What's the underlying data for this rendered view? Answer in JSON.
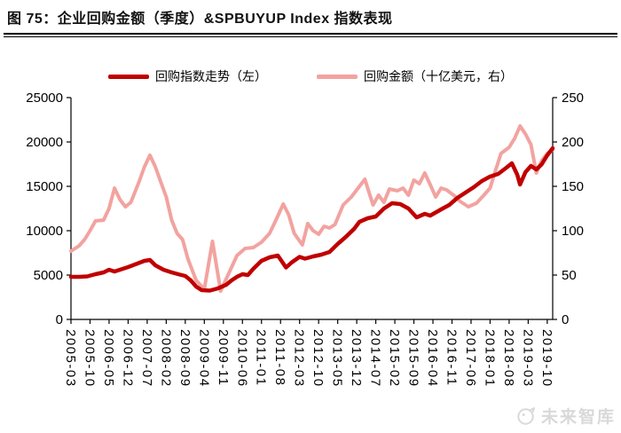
{
  "page": {
    "title": "图 75：企业回购金额（季度）&SPBUYUP Index 指数表现",
    "watermark_text": "未来智库"
  },
  "colors": {
    "index_line": "#C00000",
    "amount_line": "#F2A3A0",
    "axis": "#000000",
    "tick_label": "#000000",
    "watermark": "#D9D9D9"
  },
  "chart_data": {
    "type": "line",
    "title": "企业回购金额（季度）&SPBUYUP Index 指数表现",
    "grid": false,
    "legend_position": "top-center",
    "left_ylim": [
      0,
      25000
    ],
    "right_ylim": [
      0,
      250
    ],
    "left_axis_ticks": [
      0,
      5000,
      10000,
      15000,
      20000,
      25000
    ],
    "right_axis_ticks": [
      0,
      50,
      100,
      150,
      200,
      250
    ],
    "x_range_months": [
      "2005-03",
      "2019-12"
    ],
    "x_tick_labels": [
      "2005-03",
      "2005-10",
      "2006-05",
      "2006-12",
      "2007-07",
      "2008-02",
      "2008-09",
      "2009-04",
      "2009-11",
      "2010-06",
      "2011-01",
      "2011-08",
      "2012-03",
      "2012-10",
      "2013-05",
      "2013-12",
      "2014-07",
      "2015-02",
      "2015-09",
      "2016-04",
      "2016-11",
      "2017-06",
      "2018-01",
      "2018-08",
      "2019-03",
      "2019-10"
    ],
    "series": [
      {
        "name": "回购指数走势（左）",
        "axis": "left",
        "color": "#C00000",
        "points": [
          [
            "2005-03",
            4800
          ],
          [
            "2005-06",
            4800
          ],
          [
            "2005-09",
            4850
          ],
          [
            "2005-12",
            5100
          ],
          [
            "2006-03",
            5300
          ],
          [
            "2006-05",
            5600
          ],
          [
            "2006-07",
            5400
          ],
          [
            "2006-09",
            5600
          ],
          [
            "2006-12",
            5900
          ],
          [
            "2007-03",
            6250
          ],
          [
            "2007-06",
            6600
          ],
          [
            "2007-08",
            6700
          ],
          [
            "2007-10",
            6100
          ],
          [
            "2008-01",
            5600
          ],
          [
            "2008-04",
            5300
          ],
          [
            "2008-07",
            5050
          ],
          [
            "2008-09",
            4900
          ],
          [
            "2008-11",
            4400
          ],
          [
            "2009-01",
            3700
          ],
          [
            "2009-03",
            3300
          ],
          [
            "2009-06",
            3250
          ],
          [
            "2009-09",
            3500
          ],
          [
            "2009-12",
            3900
          ],
          [
            "2010-02",
            4400
          ],
          [
            "2010-04",
            4800
          ],
          [
            "2010-06",
            5100
          ],
          [
            "2010-08",
            5000
          ],
          [
            "2010-10",
            5700
          ],
          [
            "2011-01",
            6600
          ],
          [
            "2011-04",
            7000
          ],
          [
            "2011-07",
            7200
          ],
          [
            "2011-10",
            5850
          ],
          [
            "2011-12",
            6400
          ],
          [
            "2012-03",
            7050
          ],
          [
            "2012-05",
            6850
          ],
          [
            "2012-08",
            7100
          ],
          [
            "2012-11",
            7300
          ],
          [
            "2013-02",
            7600
          ],
          [
            "2013-05",
            8500
          ],
          [
            "2013-08",
            9300
          ],
          [
            "2013-11",
            10200
          ],
          [
            "2014-01",
            11000
          ],
          [
            "2014-04",
            11400
          ],
          [
            "2014-07",
            11600
          ],
          [
            "2014-10",
            12500
          ],
          [
            "2015-01",
            13100
          ],
          [
            "2015-04",
            13000
          ],
          [
            "2015-07",
            12500
          ],
          [
            "2015-10",
            11500
          ],
          [
            "2016-01",
            11900
          ],
          [
            "2016-03",
            11700
          ],
          [
            "2016-07",
            12400
          ],
          [
            "2016-10",
            12900
          ],
          [
            "2017-01",
            13700
          ],
          [
            "2017-04",
            14300
          ],
          [
            "2017-07",
            14900
          ],
          [
            "2017-10",
            15600
          ],
          [
            "2018-01",
            16100
          ],
          [
            "2018-04",
            16400
          ],
          [
            "2018-07",
            17100
          ],
          [
            "2018-09",
            17600
          ],
          [
            "2018-11",
            16300
          ],
          [
            "2018-12",
            15200
          ],
          [
            "2019-02",
            16600
          ],
          [
            "2019-04",
            17300
          ],
          [
            "2019-06",
            16900
          ],
          [
            "2019-08",
            17500
          ],
          [
            "2019-10",
            18500
          ],
          [
            "2019-12",
            19300
          ]
        ]
      },
      {
        "name": "回购金额（十亿美元，右）",
        "axis": "right",
        "color": "#F2A3A0",
        "points": [
          [
            "2005-03",
            77
          ],
          [
            "2005-06",
            83
          ],
          [
            "2005-08",
            90
          ],
          [
            "2005-10",
            100
          ],
          [
            "2005-12",
            111
          ],
          [
            "2006-03",
            112
          ],
          [
            "2006-05",
            125
          ],
          [
            "2006-07",
            148
          ],
          [
            "2006-09",
            135
          ],
          [
            "2006-11",
            127
          ],
          [
            "2007-01",
            132
          ],
          [
            "2007-04",
            155
          ],
          [
            "2007-06",
            172
          ],
          [
            "2007-08",
            185
          ],
          [
            "2007-10",
            172
          ],
          [
            "2007-12",
            155
          ],
          [
            "2008-02",
            138
          ],
          [
            "2008-04",
            112
          ],
          [
            "2008-06",
            97
          ],
          [
            "2008-08",
            90
          ],
          [
            "2008-10",
            68
          ],
          [
            "2009-01",
            44
          ],
          [
            "2009-04",
            34
          ],
          [
            "2009-07",
            88
          ],
          [
            "2009-10",
            32
          ],
          [
            "2010-01",
            52
          ],
          [
            "2010-04",
            72
          ],
          [
            "2010-07",
            80
          ],
          [
            "2010-10",
            81
          ],
          [
            "2011-01",
            87
          ],
          [
            "2011-04",
            97
          ],
          [
            "2011-06",
            110
          ],
          [
            "2011-09",
            130
          ],
          [
            "2011-11",
            118
          ],
          [
            "2012-01",
            97
          ],
          [
            "2012-04",
            84
          ],
          [
            "2012-06",
            108
          ],
          [
            "2012-08",
            100
          ],
          [
            "2012-10",
            96
          ],
          [
            "2012-12",
            105
          ],
          [
            "2013-02",
            103
          ],
          [
            "2013-04",
            107
          ],
          [
            "2013-07",
            129
          ],
          [
            "2013-10",
            138
          ],
          [
            "2014-01",
            150
          ],
          [
            "2014-03",
            158
          ],
          [
            "2014-06",
            129
          ],
          [
            "2014-08",
            140
          ],
          [
            "2014-10",
            132
          ],
          [
            "2014-12",
            147
          ],
          [
            "2015-03",
            145
          ],
          [
            "2015-05",
            148
          ],
          [
            "2015-07",
            140
          ],
          [
            "2015-09",
            157
          ],
          [
            "2015-11",
            153
          ],
          [
            "2016-01",
            165
          ],
          [
            "2016-03",
            152
          ],
          [
            "2016-05",
            138
          ],
          [
            "2016-07",
            148
          ],
          [
            "2016-09",
            146
          ],
          [
            "2016-12",
            139
          ],
          [
            "2017-02",
            133
          ],
          [
            "2017-05",
            127
          ],
          [
            "2017-08",
            131
          ],
          [
            "2017-11",
            141
          ],
          [
            "2018-01",
            148
          ],
          [
            "2018-03",
            168
          ],
          [
            "2018-05",
            187
          ],
          [
            "2018-08",
            194
          ],
          [
            "2018-10",
            204
          ],
          [
            "2018-12",
            218
          ],
          [
            "2019-02",
            209
          ],
          [
            "2019-04",
            197
          ],
          [
            "2019-06",
            165
          ],
          [
            "2019-08",
            179
          ],
          [
            "2019-10",
            187
          ],
          [
            "2019-12",
            191
          ]
        ]
      }
    ]
  }
}
